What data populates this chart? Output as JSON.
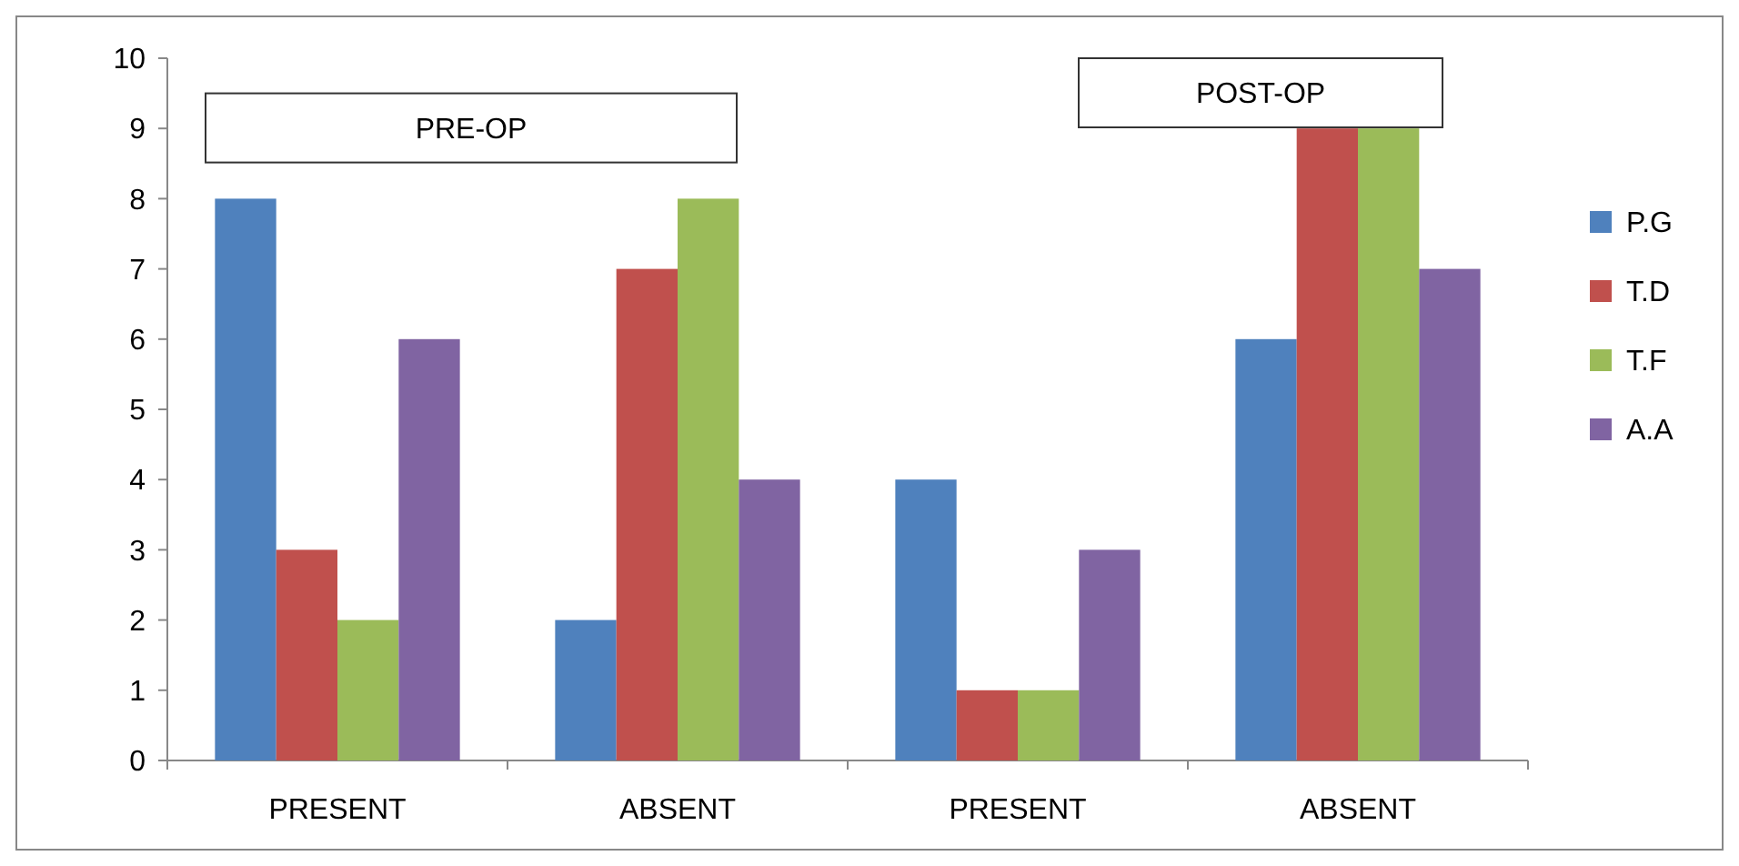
{
  "chart_data": {
    "type": "bar",
    "categories": [
      "PRESENT",
      "ABSENT",
      "PRESENT",
      "ABSENT"
    ],
    "series": [
      {
        "name": "P.G",
        "color": "#4f81bd",
        "values": [
          8,
          2,
          4,
          6
        ]
      },
      {
        "name": "T.D",
        "color": "#c0504d",
        "values": [
          3,
          7,
          1,
          9
        ]
      },
      {
        "name": "T.F",
        "color": "#9bbb59",
        "values": [
          2,
          8,
          1,
          9
        ]
      },
      {
        "name": "A.A",
        "color": "#8064a2",
        "values": [
          6,
          4,
          3,
          7
        ]
      }
    ],
    "ylim": [
      0,
      10
    ],
    "yticks": [
      0,
      1,
      2,
      3,
      4,
      5,
      6,
      7,
      8,
      9,
      10
    ],
    "grid": false,
    "legend": "right",
    "annotations": [
      "PRE-OP",
      "POST-OP"
    ]
  }
}
